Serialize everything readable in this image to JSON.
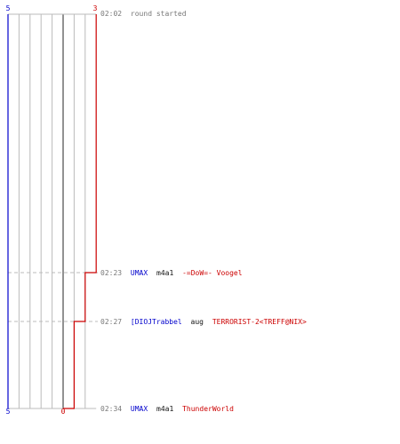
{
  "colors": {
    "team_ct": "#0000cc",
    "team_t": "#cc0000",
    "timestamp": "#777777",
    "kill_text": "#111111",
    "grid": "#bbbbbb",
    "dashed": "#bbbbbb",
    "mid_line": "#777777"
  },
  "header": {
    "ct_start": "5",
    "t_start": "3",
    "start_time": "02:02",
    "start_text": "round started"
  },
  "footer": {
    "ct_end": "5",
    "t_end": "0"
  },
  "events": [
    {
      "time": "02:23",
      "killer": "UMAX",
      "weapon": "m4a1",
      "victim": "-=DoW=- Voogel"
    },
    {
      "time": "02:27",
      "killer": "[DIOJTrabbel",
      "weapon": "aug",
      "victim": "TERRORIST-2<TREFF@NIX>"
    },
    {
      "time": "02:34",
      "killer": "UMAX",
      "weapon": "m4a1",
      "victim": "ThunderWorld"
    }
  ],
  "chart_data": {
    "type": "line",
    "series": [
      {
        "x": [
          "02:02",
          "02:23",
          "02:27",
          "02:34"
        ],
        "values": [
          5,
          5,
          5,
          5
        ]
      },
      {
        "x": [
          "02:02",
          "02:23",
          "02:27",
          "02:34"
        ],
        "values": [
          3,
          2,
          1,
          0
        ]
      }
    ],
    "ylim": [
      0,
      10
    ]
  }
}
